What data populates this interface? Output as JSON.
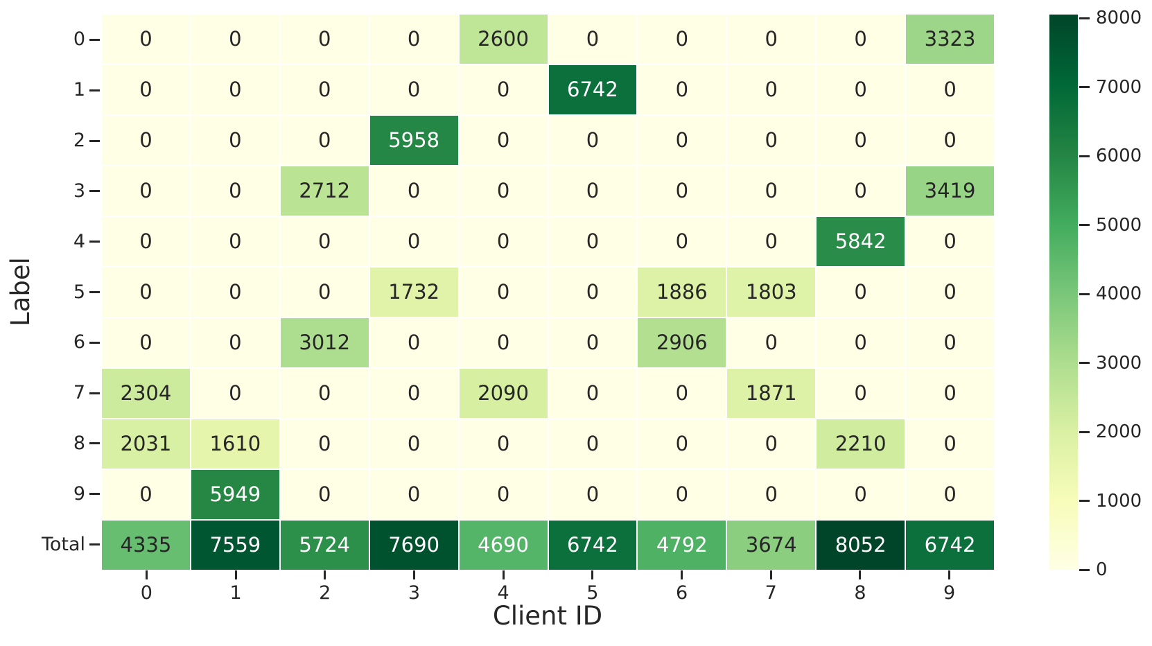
{
  "chart_data": {
    "type": "heatmap",
    "title": "",
    "xlabel": "Client ID",
    "ylabel": "Label",
    "x_tick_labels": [
      "0",
      "1",
      "2",
      "3",
      "4",
      "5",
      "6",
      "7",
      "8",
      "9"
    ],
    "y_tick_labels": [
      "0",
      "1",
      "2",
      "3",
      "4",
      "5",
      "6",
      "7",
      "8",
      "9",
      "Total"
    ],
    "values": [
      [
        0,
        0,
        0,
        0,
        2600,
        0,
        0,
        0,
        0,
        3323
      ],
      [
        0,
        0,
        0,
        0,
        0,
        6742,
        0,
        0,
        0,
        0
      ],
      [
        0,
        0,
        0,
        5958,
        0,
        0,
        0,
        0,
        0,
        0
      ],
      [
        0,
        0,
        2712,
        0,
        0,
        0,
        0,
        0,
        0,
        3419
      ],
      [
        0,
        0,
        0,
        0,
        0,
        0,
        0,
        0,
        5842,
        0
      ],
      [
        0,
        0,
        0,
        1732,
        0,
        0,
        1886,
        1803,
        0,
        0
      ],
      [
        0,
        0,
        3012,
        0,
        0,
        0,
        2906,
        0,
        0,
        0
      ],
      [
        2304,
        0,
        0,
        0,
        2090,
        0,
        0,
        1871,
        0,
        0
      ],
      [
        2031,
        1610,
        0,
        0,
        0,
        0,
        0,
        0,
        2210,
        0
      ],
      [
        0,
        5949,
        0,
        0,
        0,
        0,
        0,
        0,
        0,
        0
      ],
      [
        4335,
        7559,
        5724,
        7690,
        4690,
        6742,
        4792,
        3674,
        8052,
        6742
      ]
    ],
    "vmin": 0,
    "vmax": 8052,
    "colormap": {
      "name": "YlGn",
      "stops": [
        "#ffffe5",
        "#f7fcb9",
        "#d9f0a3",
        "#addd8e",
        "#78c679",
        "#41ab5d",
        "#238443",
        "#006837",
        "#004529"
      ]
    },
    "colorbar": {
      "ticks": [
        0,
        1000,
        2000,
        3000,
        4000,
        5000,
        6000,
        7000,
        8000
      ],
      "tick_labels": [
        "0",
        "1000",
        "2000",
        "3000",
        "4000",
        "5000",
        "6000",
        "7000",
        "8000"
      ]
    },
    "annotation_colors": {
      "dark": "#262626",
      "light": "#ffffff"
    },
    "grid_line_color": "#ffffff",
    "tick_color": "#262626",
    "legend_position": "right-colorbar",
    "grid": false
  }
}
